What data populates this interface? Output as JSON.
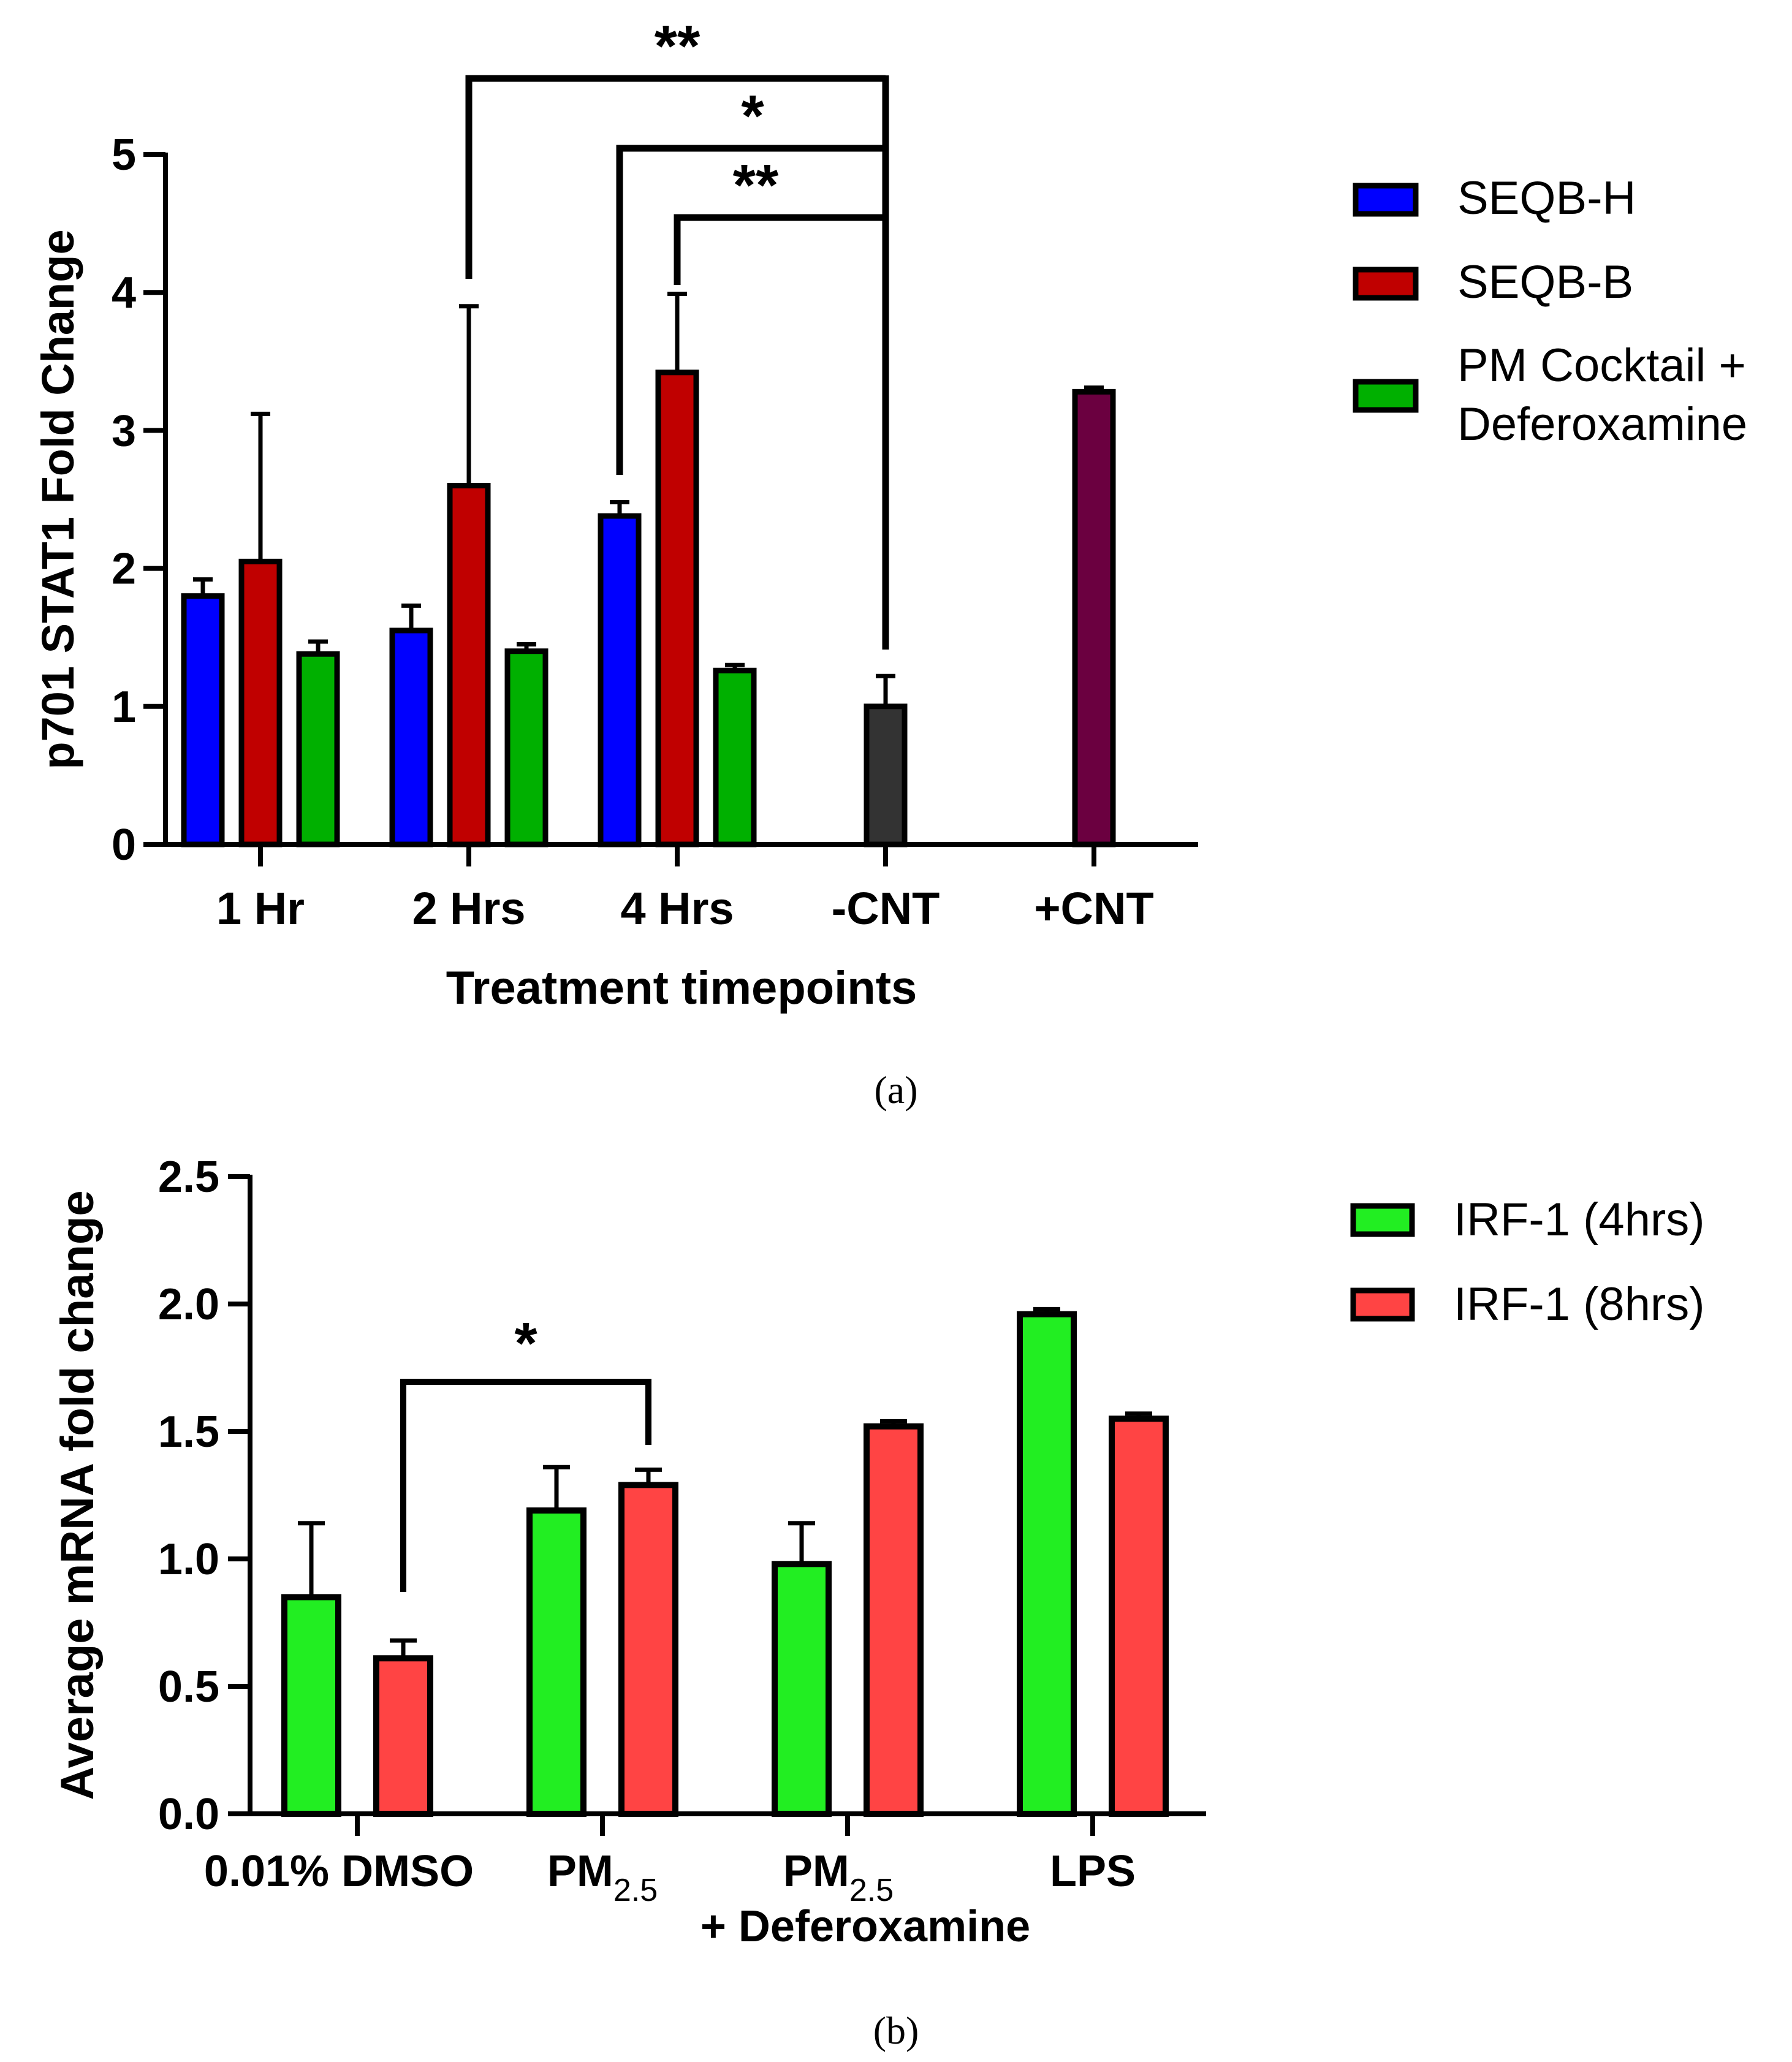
{
  "captions": {
    "a": "(a)",
    "b": "(b)"
  },
  "chart_data": [
    {
      "type": "bar",
      "xlabel": "Treatment timepoints",
      "ylabel": "p701 STAT1 Fold  Change",
      "ylim": [
        0,
        5
      ],
      "yticks": [
        "0",
        "1",
        "2",
        "3",
        "4",
        "5"
      ],
      "categories": [
        "1 Hr",
        "2 Hrs",
        "4 Hrs",
        "-CNT",
        "+CNT"
      ],
      "legend_position": "right",
      "series": [
        {
          "name": "SEQB-H",
          "color": "#0000ff",
          "values": [
            1.8,
            1.55,
            2.38,
            null,
            null
          ],
          "errors": [
            0.12,
            0.18,
            0.1,
            null,
            null
          ]
        },
        {
          "name": "SEQB-B",
          "color": "#c00000",
          "values": [
            2.05,
            2.6,
            3.42,
            null,
            null
          ],
          "errors": [
            1.07,
            1.3,
            0.57,
            null,
            null
          ]
        },
        {
          "name_lines": [
            "PM Cocktail +",
            "Deferoxamine"
          ],
          "color": "#00b000",
          "values": [
            1.38,
            1.4,
            1.26,
            null,
            null
          ],
          "errors": [
            0.09,
            0.05,
            0.04,
            null,
            null
          ]
        },
        {
          "color": "#333333",
          "values": [
            null,
            null,
            null,
            1.0,
            null
          ],
          "errors": [
            null,
            null,
            null,
            0.22,
            null
          ]
        },
        {
          "color": "#6b0040",
          "values": [
            null,
            null,
            null,
            null,
            3.28
          ],
          "errors": [
            null,
            null,
            null,
            null,
            0.03
          ]
        }
      ],
      "significance": [
        {
          "label": "**",
          "from_category": "2 Hrs",
          "from_series": 1,
          "to_category": "-CNT",
          "to_series": 0
        },
        {
          "label": "*",
          "from_category": "4 Hrs",
          "from_series": 0,
          "to_category": "-CNT",
          "to_series": 0
        },
        {
          "label": "**",
          "from_category": "4 Hrs",
          "from_series": 1,
          "to_category": "-CNT",
          "to_series": 0
        }
      ]
    },
    {
      "type": "bar",
      "xlabel": "",
      "ylabel": "Average mRNA fold change",
      "ylim": [
        0,
        2.5
      ],
      "yticks": [
        "0.0",
        "0.5",
        "1.0",
        "1.5",
        "2.0",
        "2.5"
      ],
      "categories": [
        {
          "main": "0.01% DMSO"
        },
        {
          "main": "PM",
          "sub": "2.5"
        },
        {
          "main": "PM",
          "sub": "2.5",
          "line2": "+ Deferoxamine"
        },
        {
          "main": "LPS"
        }
      ],
      "legend_position": "right",
      "series": [
        {
          "name": "IRF-1 (4hrs)",
          "color": "#22ee22",
          "values": [
            0.85,
            1.19,
            0.98,
            1.96
          ],
          "errors": [
            0.29,
            0.17,
            0.16,
            0.02
          ]
        },
        {
          "name": "IRF-1 (8hrs)",
          "color": "#ff4444",
          "values": [
            0.61,
            1.29,
            1.52,
            1.55
          ],
          "errors": [
            0.07,
            0.06,
            0.02,
            0.02
          ]
        }
      ],
      "significance": [
        {
          "label": "*",
          "from_category": 0,
          "from_series": 1,
          "to_category": 1,
          "to_series": 1
        }
      ]
    }
  ]
}
